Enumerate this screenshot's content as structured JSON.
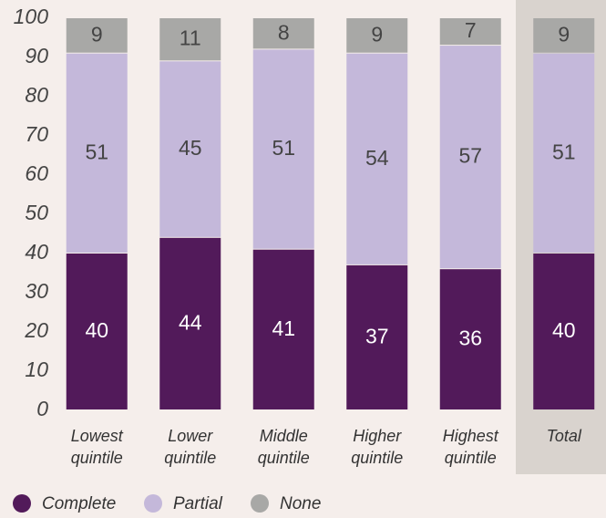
{
  "chart_data": {
    "type": "stacked_bar",
    "categories": [
      "Lowest quintile",
      "Lower quintile",
      "Middle quintile",
      "Higher quintile",
      "Highest quintile",
      "Total"
    ],
    "series": [
      {
        "name": "Complete",
        "color": "#521a5a",
        "label_color": "#ffffff",
        "values": [
          40,
          44,
          41,
          37,
          36,
          40
        ]
      },
      {
        "name": "Partial",
        "color": "#c4b8da",
        "label_color": "#444444",
        "values": [
          51,
          45,
          51,
          54,
          57,
          51
        ]
      },
      {
        "name": "None",
        "color": "#a8a8a6",
        "label_color": "#444444",
        "values": [
          9,
          11,
          8,
          9,
          7,
          9
        ]
      }
    ],
    "ylim": [
      0,
      100
    ],
    "yticks": [
      0,
      10,
      20,
      30,
      40,
      50,
      60,
      70,
      80,
      90,
      100
    ],
    "grid": false
  }
}
